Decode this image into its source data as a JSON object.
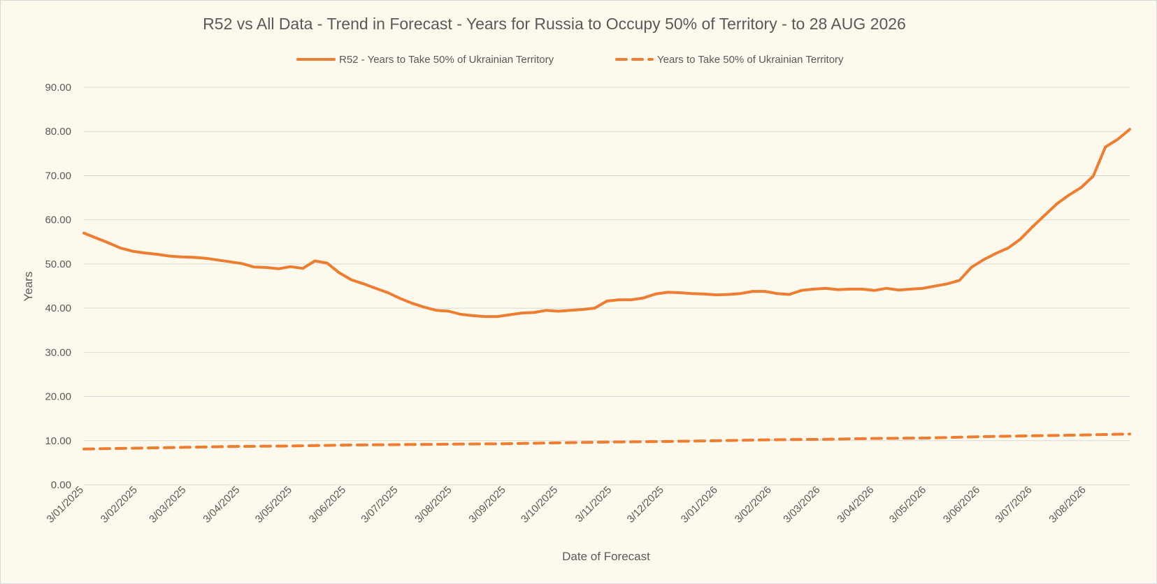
{
  "chart_data": {
    "type": "line",
    "title": "R52 vs All Data  - Trend in Forecast - Years for Russia to Occupy 50% of Territory - to 28 AUG 2026",
    "xlabel": "Date of Forecast",
    "ylabel": "Years",
    "ylim": [
      0,
      90
    ],
    "y_ticks": [
      "0.00",
      "10.00",
      "20.00",
      "30.00",
      "40.00",
      "50.00",
      "60.00",
      "70.00",
      "80.00",
      "90.00"
    ],
    "x_tick_labels": [
      "3/01/2025",
      "3/02/2025",
      "3/03/2025",
      "3/04/2025",
      "3/05/2025",
      "3/06/2025",
      "3/07/2025",
      "3/08/2025",
      "3/09/2025",
      "3/10/2025",
      "3/11/2025",
      "3/12/2025",
      "3/01/2026",
      "3/02/2026",
      "3/03/2026",
      "3/04/2026",
      "3/05/2026",
      "3/06/2026",
      "3/07/2026",
      "3/08/2026"
    ],
    "x_range": [
      "2025-01-03",
      "2026-08-28"
    ],
    "grid": true,
    "legend_position": "top-center",
    "accent_color": "#ed7d31",
    "series": [
      {
        "name": "R52 - Years to Take  50% of Ukrainian Territory",
        "style": "solid",
        "points": [
          [
            "2025-01-03",
            57.0
          ],
          [
            "2025-01-10",
            55.9
          ],
          [
            "2025-01-17",
            54.8
          ],
          [
            "2025-01-24",
            53.6
          ],
          [
            "2025-01-31",
            52.9
          ],
          [
            "2025-02-07",
            52.5
          ],
          [
            "2025-02-14",
            52.2
          ],
          [
            "2025-02-21",
            51.8
          ],
          [
            "2025-02-28",
            51.6
          ],
          [
            "2025-03-07",
            51.5
          ],
          [
            "2025-03-14",
            51.3
          ],
          [
            "2025-03-21",
            50.9
          ],
          [
            "2025-03-28",
            50.5
          ],
          [
            "2025-04-04",
            50.1
          ],
          [
            "2025-04-11",
            49.3
          ],
          [
            "2025-04-18",
            49.2
          ],
          [
            "2025-04-25",
            48.9
          ],
          [
            "2025-05-02",
            49.4
          ],
          [
            "2025-05-09",
            49.0
          ],
          [
            "2025-05-16",
            50.7
          ],
          [
            "2025-05-23",
            50.2
          ],
          [
            "2025-05-30",
            48.0
          ],
          [
            "2025-06-06",
            46.4
          ],
          [
            "2025-06-13",
            45.5
          ],
          [
            "2025-06-20",
            44.5
          ],
          [
            "2025-06-27",
            43.5
          ],
          [
            "2025-07-04",
            42.2
          ],
          [
            "2025-07-11",
            41.1
          ],
          [
            "2025-07-18",
            40.2
          ],
          [
            "2025-07-25",
            39.5
          ],
          [
            "2025-08-01",
            39.3
          ],
          [
            "2025-08-08",
            38.6
          ],
          [
            "2025-08-15",
            38.3
          ],
          [
            "2025-08-22",
            38.1
          ],
          [
            "2025-08-29",
            38.1
          ],
          [
            "2025-09-05",
            38.5
          ],
          [
            "2025-09-12",
            38.9
          ],
          [
            "2025-09-19",
            39.0
          ],
          [
            "2025-09-26",
            39.5
          ],
          [
            "2025-10-03",
            39.3
          ],
          [
            "2025-10-10",
            39.5
          ],
          [
            "2025-10-17",
            39.7
          ],
          [
            "2025-10-24",
            40.0
          ],
          [
            "2025-10-31",
            41.6
          ],
          [
            "2025-11-07",
            41.9
          ],
          [
            "2025-11-14",
            41.9
          ],
          [
            "2025-11-21",
            42.3
          ],
          [
            "2025-11-28",
            43.2
          ],
          [
            "2025-12-05",
            43.6
          ],
          [
            "2025-12-12",
            43.5
          ],
          [
            "2025-12-19",
            43.3
          ],
          [
            "2025-12-26",
            43.2
          ],
          [
            "2026-01-02",
            43.0
          ],
          [
            "2026-01-09",
            43.1
          ],
          [
            "2026-01-16",
            43.3
          ],
          [
            "2026-01-23",
            43.8
          ],
          [
            "2026-01-30",
            43.8
          ],
          [
            "2026-02-06",
            43.3
          ],
          [
            "2026-02-13",
            43.1
          ],
          [
            "2026-02-20",
            44.0
          ],
          [
            "2026-02-27",
            44.3
          ],
          [
            "2026-03-06",
            44.5
          ],
          [
            "2026-03-13",
            44.2
          ],
          [
            "2026-03-20",
            44.3
          ],
          [
            "2026-03-27",
            44.3
          ],
          [
            "2026-04-03",
            44.0
          ],
          [
            "2026-04-10",
            44.5
          ],
          [
            "2026-04-17",
            44.1
          ],
          [
            "2026-04-24",
            44.3
          ],
          [
            "2026-05-01",
            44.5
          ],
          [
            "2026-05-08",
            45.0
          ],
          [
            "2026-05-15",
            45.5
          ],
          [
            "2026-05-22",
            46.3
          ],
          [
            "2026-05-29",
            49.3
          ],
          [
            "2026-06-05",
            51.0
          ],
          [
            "2026-06-12",
            52.4
          ],
          [
            "2026-06-19",
            53.6
          ],
          [
            "2026-06-26",
            55.6
          ],
          [
            "2026-07-03",
            58.4
          ],
          [
            "2026-07-10",
            61.0
          ],
          [
            "2026-07-17",
            63.6
          ],
          [
            "2026-07-24",
            65.6
          ],
          [
            "2026-07-31",
            67.3
          ],
          [
            "2026-08-07",
            69.9
          ],
          [
            "2026-08-14",
            76.5
          ],
          [
            "2026-08-21",
            78.2
          ],
          [
            "2026-08-28",
            80.5
          ]
        ]
      },
      {
        "name": "Years to Take  50% of Ukrainian Territory",
        "style": "dashed",
        "points": [
          [
            "2025-01-03",
            8.1
          ],
          [
            "2025-02-03",
            8.3
          ],
          [
            "2025-03-03",
            8.5
          ],
          [
            "2025-04-03",
            8.7
          ],
          [
            "2025-05-03",
            8.8
          ],
          [
            "2025-06-03",
            9.0
          ],
          [
            "2025-07-03",
            9.1
          ],
          [
            "2025-08-03",
            9.2
          ],
          [
            "2025-09-03",
            9.3
          ],
          [
            "2025-10-03",
            9.5
          ],
          [
            "2025-11-03",
            9.7
          ],
          [
            "2025-12-03",
            9.8
          ],
          [
            "2026-01-03",
            10.0
          ],
          [
            "2026-02-03",
            10.2
          ],
          [
            "2026-03-03",
            10.3
          ],
          [
            "2026-04-03",
            10.5
          ],
          [
            "2026-05-03",
            10.6
          ],
          [
            "2026-06-03",
            10.9
          ],
          [
            "2026-07-03",
            11.1
          ],
          [
            "2026-08-03",
            11.3
          ],
          [
            "2026-08-28",
            11.5
          ]
        ]
      }
    ]
  }
}
